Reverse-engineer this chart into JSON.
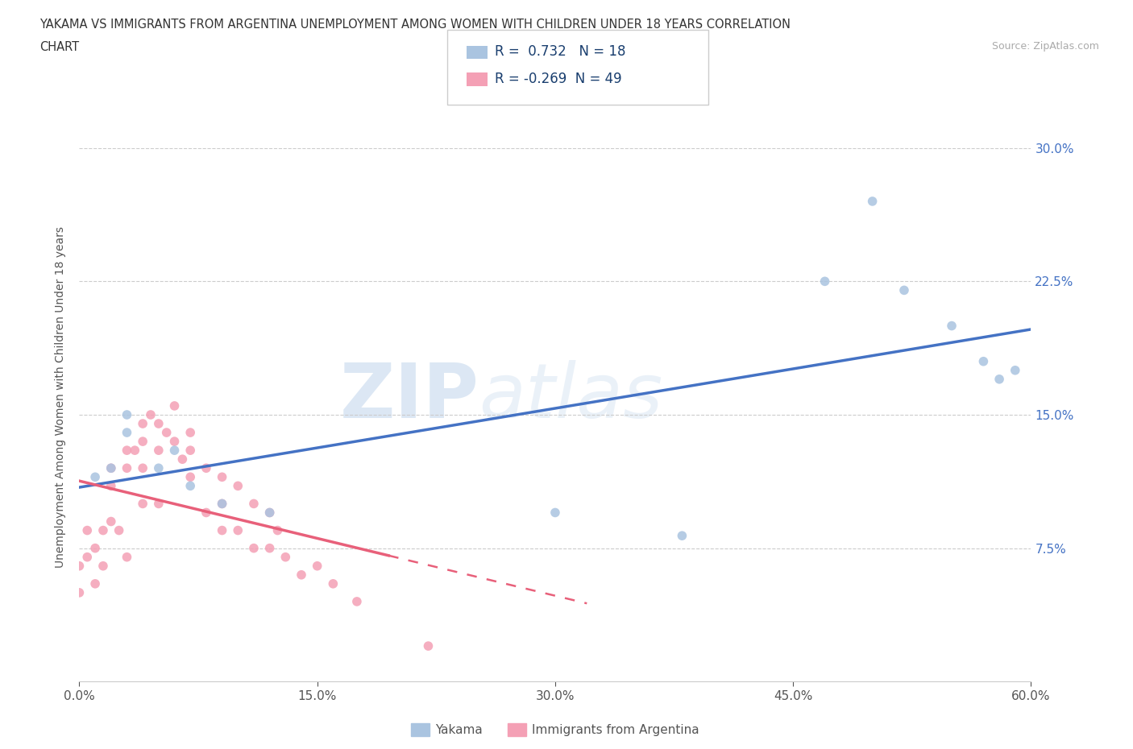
{
  "title_line1": "YAKAMA VS IMMIGRANTS FROM ARGENTINA UNEMPLOYMENT AMONG WOMEN WITH CHILDREN UNDER 18 YEARS CORRELATION",
  "title_line2": "CHART",
  "source_text": "Source: ZipAtlas.com",
  "watermark_left": "ZIP",
  "watermark_right": "atlas",
  "ylabel": "Unemployment Among Women with Children Under 18 years",
  "xlim": [
    0.0,
    0.6
  ],
  "ylim": [
    0.0,
    0.32
  ],
  "xtick_labels": [
    "0.0%",
    "15.0%",
    "30.0%",
    "45.0%",
    "60.0%"
  ],
  "xtick_values": [
    0.0,
    0.15,
    0.3,
    0.45,
    0.6
  ],
  "ytick_labels": [
    "7.5%",
    "15.0%",
    "22.5%",
    "30.0%"
  ],
  "ytick_values": [
    0.075,
    0.15,
    0.225,
    0.3
  ],
  "yakama_color": "#aac4e0",
  "argentina_color": "#f4a0b5",
  "yakama_line_color": "#4472c4",
  "argentina_line_color": "#e8607a",
  "yakama_R": 0.732,
  "yakama_N": 18,
  "argentina_R": -0.269,
  "argentina_N": 49,
  "yakama_scatter_x": [
    0.01,
    0.02,
    0.03,
    0.03,
    0.05,
    0.06,
    0.07,
    0.09,
    0.12,
    0.3,
    0.38,
    0.47,
    0.5,
    0.52,
    0.55,
    0.57,
    0.58,
    0.59
  ],
  "yakama_scatter_y": [
    0.115,
    0.12,
    0.14,
    0.15,
    0.12,
    0.13,
    0.11,
    0.1,
    0.095,
    0.095,
    0.082,
    0.225,
    0.27,
    0.22,
    0.2,
    0.18,
    0.17,
    0.175
  ],
  "argentina_scatter_x": [
    0.0,
    0.0,
    0.005,
    0.005,
    0.01,
    0.01,
    0.015,
    0.015,
    0.02,
    0.02,
    0.02,
    0.025,
    0.03,
    0.03,
    0.03,
    0.035,
    0.04,
    0.04,
    0.04,
    0.04,
    0.045,
    0.05,
    0.05,
    0.05,
    0.055,
    0.06,
    0.06,
    0.065,
    0.07,
    0.07,
    0.07,
    0.08,
    0.08,
    0.09,
    0.09,
    0.09,
    0.1,
    0.1,
    0.11,
    0.11,
    0.12,
    0.12,
    0.125,
    0.13,
    0.14,
    0.15,
    0.16,
    0.175,
    0.22
  ],
  "argentina_scatter_y": [
    0.065,
    0.05,
    0.085,
    0.07,
    0.075,
    0.055,
    0.085,
    0.065,
    0.12,
    0.11,
    0.09,
    0.085,
    0.13,
    0.12,
    0.07,
    0.13,
    0.145,
    0.135,
    0.12,
    0.1,
    0.15,
    0.145,
    0.13,
    0.1,
    0.14,
    0.155,
    0.135,
    0.125,
    0.14,
    0.13,
    0.115,
    0.12,
    0.095,
    0.115,
    0.1,
    0.085,
    0.11,
    0.085,
    0.1,
    0.075,
    0.095,
    0.075,
    0.085,
    0.07,
    0.06,
    0.065,
    0.055,
    0.045,
    0.02
  ],
  "legend_label_yakama": "Yakama",
  "legend_label_argentina": "Immigrants from Argentina",
  "background_color": "#ffffff",
  "grid_color": "#cccccc",
  "ytick_color": "#4472c4",
  "xtick_color": "#555555",
  "ylabel_color": "#555555",
  "title_color": "#333333",
  "source_color": "#aaaaaa"
}
